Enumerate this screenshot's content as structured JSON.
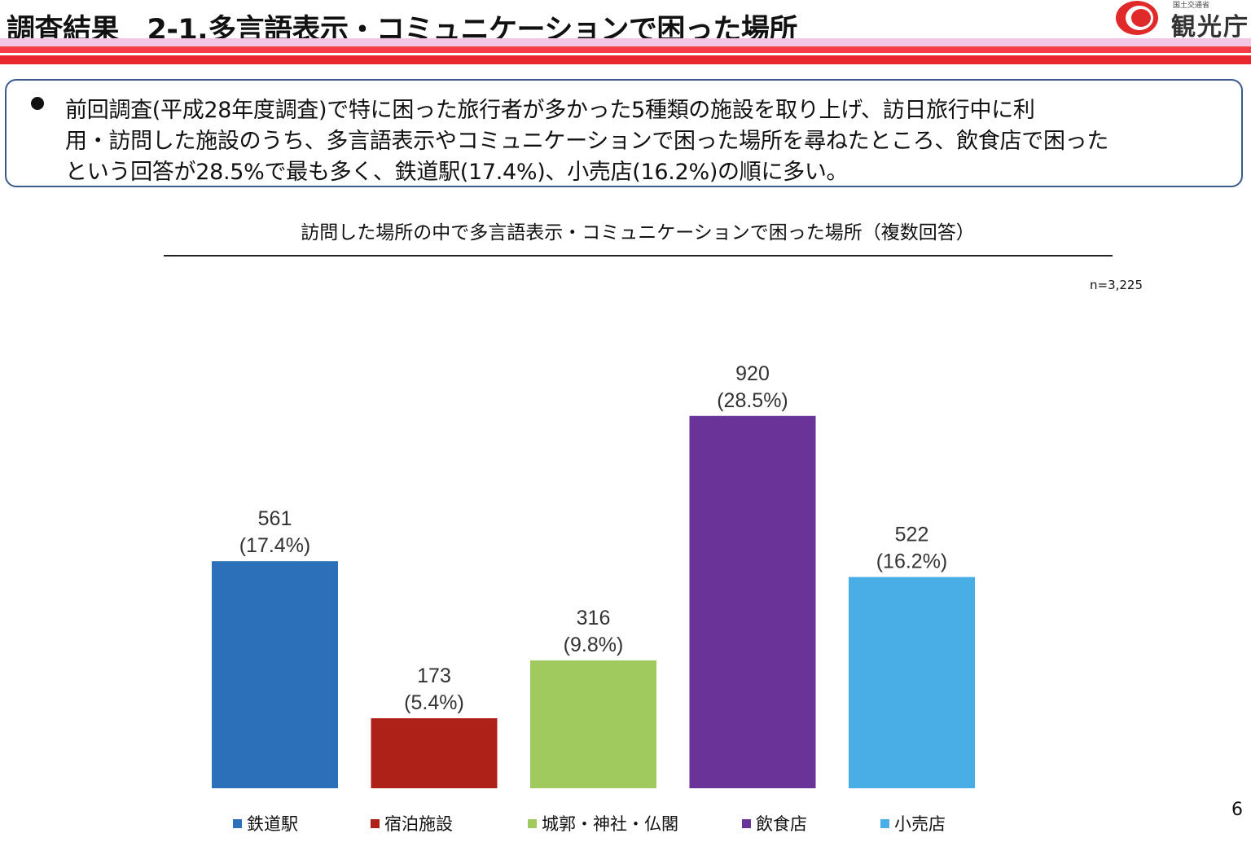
{
  "header": {
    "title": "調査結果　2-1.多言語表示・コミュニケーションで困った場所",
    "logo_sub": "国土交通省",
    "logo_text": "観光庁"
  },
  "summary": {
    "lines": [
      "前回調査(平成28年度調査)で特に困った旅行者が多かった5種類の施設を取り上げ、訪日旅行中に利",
      "用・訪問した施設のうち、多言語表示やコミュニケーションで困った場所を尋ねたところ、飲食店で困った",
      "という回答が28.5%で最も多く、鉄道駅(17.4%)、小売店(16.2%)の順に多い。"
    ]
  },
  "n_note": "n=3,225",
  "page_number": "6",
  "chart_data": {
    "type": "bar",
    "title": "訪問した場所の中で多言語表示・コミュニケーションで困った場所（複数回答）",
    "categories": [
      "鉄道駅",
      "宿泊施設",
      "城郭・神社・仏閣",
      "飲食店",
      "小売店"
    ],
    "values": [
      561,
      173,
      316,
      920,
      522
    ],
    "value_labels": [
      "561",
      "173",
      "316",
      "920",
      "522"
    ],
    "percent_labels": [
      "(17.4%)",
      "(5.4%)",
      "(9.8%)",
      "(28.5%)",
      "(16.2%)"
    ],
    "colors": [
      "#2b70b9",
      "#ae2119",
      "#a0c95e",
      "#693496",
      "#4aaee6"
    ],
    "ylim": [
      0,
      1000
    ],
    "grid": false,
    "legend": "bottom",
    "xlabel": "",
    "ylabel": ""
  }
}
